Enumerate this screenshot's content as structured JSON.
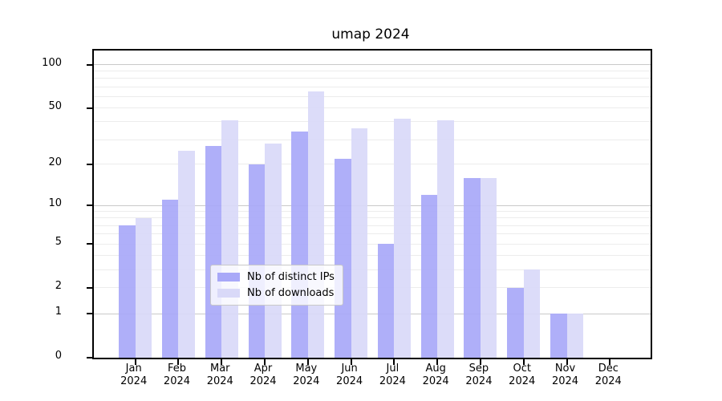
{
  "chart_data": {
    "type": "bar",
    "title": "umap 2024",
    "x_months": [
      "Jan",
      "Feb",
      "Mar",
      "Apr",
      "May",
      "Jun",
      "Jul",
      "Aug",
      "Sep",
      "Oct",
      "Nov",
      "Dec"
    ],
    "x_year": "2024",
    "series": [
      {
        "name": "Nb of distinct IPs",
        "color": "#a8a8f8",
        "values": [
          7,
          11,
          27,
          20,
          34,
          22,
          5,
          12,
          16,
          2,
          1,
          0
        ]
      },
      {
        "name": "Nb of downloads",
        "color": "#d9d9f8",
        "values": [
          8,
          25,
          41,
          28,
          65,
          36,
          42,
          41,
          16,
          3,
          1,
          0
        ]
      }
    ],
    "yscale": "log1p",
    "ylim": [
      0,
      125
    ],
    "y_ticks": [
      0,
      1,
      2,
      5,
      10,
      20,
      50,
      100
    ],
    "y_major_gridlines": [
      1,
      10,
      100
    ],
    "y_minor_gridlines": [
      2,
      3,
      4,
      5,
      6,
      7,
      8,
      9,
      20,
      30,
      40,
      50,
      60,
      70,
      80,
      90
    ],
    "grid": true,
    "legend_position": "lower center",
    "colors": {
      "major_grid": "#c9c9c9",
      "minor_grid": "#ececec",
      "spine": "#000000",
      "text": "#000000"
    }
  }
}
